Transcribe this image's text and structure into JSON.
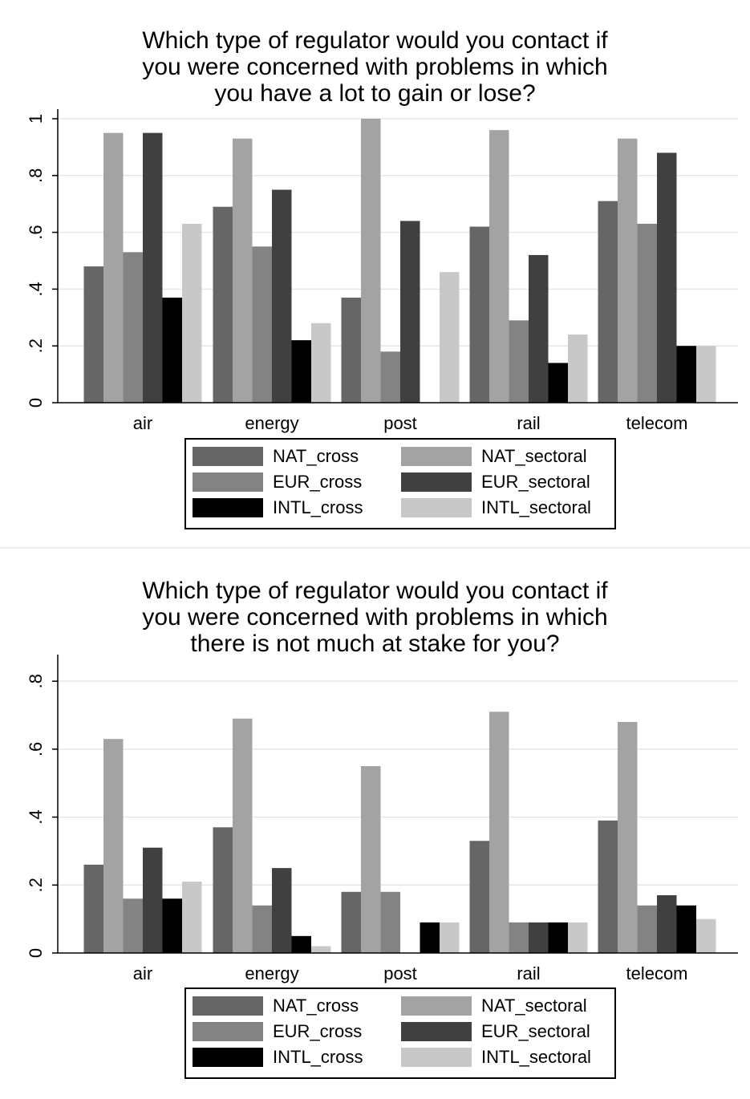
{
  "chart_data": [
    {
      "type": "bar",
      "title": "Which type of regulator would you contact if\nyou were concerned with problems in which\nyou have a lot to gain or lose?",
      "xlabel": "",
      "ylabel": "",
      "ylim": [
        0,
        1
      ],
      "yticks": [
        0,
        0.2,
        0.4,
        0.6,
        0.8,
        1
      ],
      "ytick_labels": [
        "0",
        ".2",
        ".4",
        ".6",
        ".8",
        "1"
      ],
      "grid": true,
      "legend_position": "bottom",
      "categories": [
        "air",
        "energy",
        "post",
        "rail",
        "telecom"
      ],
      "series": [
        {
          "name": "NAT_cross",
          "color": "#666666",
          "values": [
            0.48,
            0.69,
            0.37,
            0.62,
            0.71
          ]
        },
        {
          "name": "NAT_sectoral",
          "color": "#a3a3a3",
          "values": [
            0.95,
            0.93,
            1.0,
            0.96,
            0.93
          ]
        },
        {
          "name": "EUR_cross",
          "color": "#838383",
          "values": [
            0.53,
            0.55,
            0.18,
            0.29,
            0.63
          ]
        },
        {
          "name": "EUR_sectoral",
          "color": "#404040",
          "values": [
            0.95,
            0.75,
            0.64,
            0.52,
            0.88
          ]
        },
        {
          "name": "INTL_cross",
          "color": "#000000",
          "values": [
            0.37,
            0.22,
            0.0,
            0.14,
            0.2
          ]
        },
        {
          "name": "INTL_sectoral",
          "color": "#c8c8c8",
          "values": [
            0.63,
            0.28,
            0.46,
            0.24,
            0.2
          ]
        }
      ]
    },
    {
      "type": "bar",
      "title": "Which type of regulator would you contact if\nyou were concerned with problems in which\nthere is not much at stake for you?",
      "xlabel": "",
      "ylabel": "",
      "ylim": [
        0,
        0.85
      ],
      "yticks": [
        0,
        0.2,
        0.4,
        0.6,
        0.8
      ],
      "ytick_labels": [
        "0",
        ".2",
        ".4",
        ".6",
        ".8"
      ],
      "grid": true,
      "legend_position": "bottom",
      "categories": [
        "air",
        "energy",
        "post",
        "rail",
        "telecom"
      ],
      "series": [
        {
          "name": "NAT_cross",
          "color": "#666666",
          "values": [
            0.26,
            0.37,
            0.18,
            0.33,
            0.39
          ]
        },
        {
          "name": "NAT_sectoral",
          "color": "#a3a3a3",
          "values": [
            0.63,
            0.69,
            0.55,
            0.71,
            0.68
          ]
        },
        {
          "name": "EUR_cross",
          "color": "#838383",
          "values": [
            0.16,
            0.14,
            0.18,
            0.09,
            0.14
          ]
        },
        {
          "name": "EUR_sectoral",
          "color": "#404040",
          "values": [
            0.31,
            0.25,
            0.0,
            0.09,
            0.17
          ]
        },
        {
          "name": "INTL_cross",
          "color": "#000000",
          "values": [
            0.16,
            0.05,
            0.09,
            0.09,
            0.14
          ]
        },
        {
          "name": "INTL_sectoral",
          "color": "#c8c8c8",
          "values": [
            0.21,
            0.02,
            0.09,
            0.09,
            0.1
          ]
        }
      ]
    }
  ]
}
